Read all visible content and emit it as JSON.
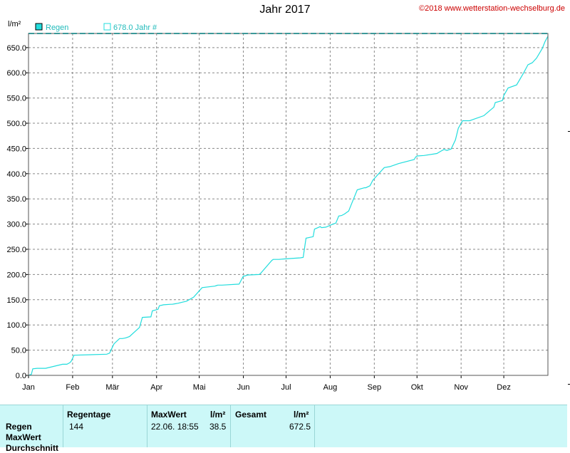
{
  "window": {
    "title": "Jahr 2017",
    "copyright": "©2018 www.wetterstation-wechselburg.de"
  },
  "chart_data": {
    "type": "line",
    "title": "Jahr 2017",
    "ylabel": "l/m²",
    "xlabel": "",
    "ylim": [
      0,
      678
    ],
    "grid": true,
    "legend": [
      {
        "label": "Regen",
        "style": "filled",
        "color": "#22dddd"
      },
      {
        "label": "678.0 Jahr #",
        "style": "open",
        "color": "#22dddd"
      }
    ],
    "legend_placement": "top-left",
    "reference_line": {
      "label": "678.0 Jahr #",
      "value": 678.0,
      "color": "#22dddd",
      "style": "dashed"
    },
    "y_ticks": [
      "0.0",
      "50.0",
      "100.0",
      "150.0",
      "200.0",
      "250.0",
      "300.0",
      "350.0",
      "400.0",
      "450.0",
      "500.0",
      "550.0",
      "600.0",
      "650.0"
    ],
    "y_tick_values": [
      0,
      50,
      100,
      150,
      200,
      250,
      300,
      350,
      400,
      450,
      500,
      550,
      600,
      650
    ],
    "x_ticks": [
      "Jan",
      "Feb",
      "Mär",
      "Apr",
      "Mai",
      "Jun",
      "Jul",
      "Aug",
      "Sep",
      "Okt",
      "Nov",
      "Dez"
    ],
    "x_tick_days": [
      0,
      31,
      59,
      90,
      120,
      151,
      181,
      212,
      243,
      273,
      304,
      334
    ],
    "x_domain_days": [
      0,
      365
    ],
    "series": [
      {
        "name": "Regen",
        "color": "#22dddd",
        "x_day": [
          0,
          2,
          3,
          6,
          9,
          12,
          24,
          27,
          29,
          30,
          32,
          55,
          57,
          60,
          61,
          64,
          66,
          68,
          69,
          71,
          78,
          80,
          86,
          87,
          91,
          92,
          95,
          100,
          101,
          103,
          105,
          108,
          111,
          116,
          122,
          131,
          132,
          133,
          136,
          148,
          151,
          152,
          154,
          162,
          163,
          171,
          172,
          176,
          180,
          191,
          193,
          195,
          200,
          201,
          205,
          206,
          209,
          214,
          216,
          218,
          220,
          222,
          225,
          226,
          231,
          236,
          237,
          240,
          242,
          250,
          254,
          260,
          271,
          272,
          273,
          278,
          287,
          290,
          292,
          294,
          297,
          300,
          302,
          305,
          310,
          312,
          320,
          322,
          327,
          328,
          333,
          334,
          337,
          343,
          348,
          351,
          354,
          357,
          361,
          363,
          365
        ],
        "y": [
          0,
          2,
          13,
          14,
          14,
          14,
          22,
          22,
          25,
          28,
          40,
          42,
          44,
          62,
          65,
          73,
          73,
          74,
          75,
          77,
          95,
          115,
          116,
          128,
          131,
          138,
          140,
          141,
          141,
          142,
          143,
          145,
          147,
          155,
          174,
          177,
          178,
          179,
          179,
          181,
          197,
          197,
          199,
          200,
          202,
          228,
          230,
          230,
          231,
          233,
          234,
          272,
          275,
          290,
          295,
          293,
          294,
          300,
          302,
          316,
          317,
          320,
          326,
          333,
          368,
          372,
          372,
          376,
          387,
          412,
          414,
          420,
          428,
          433,
          435,
          436,
          440,
          445,
          448,
          446,
          449,
          467,
          490,
          505,
          505,
          507,
          515,
          520,
          532,
          541,
          545,
          555,
          570,
          576,
          600,
          616,
          620,
          629,
          648,
          662,
          672.5
        ]
      }
    ]
  },
  "summary": {
    "headers": {
      "regentage": "Regentage",
      "maxwert": "MaxWert",
      "unit1": "l/m²",
      "gesamt": "Gesamt",
      "unit2": "l/m²"
    },
    "rows": {
      "regen": "Regen",
      "maxwert": "MaxWert",
      "durchschnitt": "Durchschnitt"
    },
    "values": {
      "regentage": "144",
      "max_date": "22.06.  18:55",
      "max_value": "38.5",
      "gesamt": "672.5"
    }
  }
}
